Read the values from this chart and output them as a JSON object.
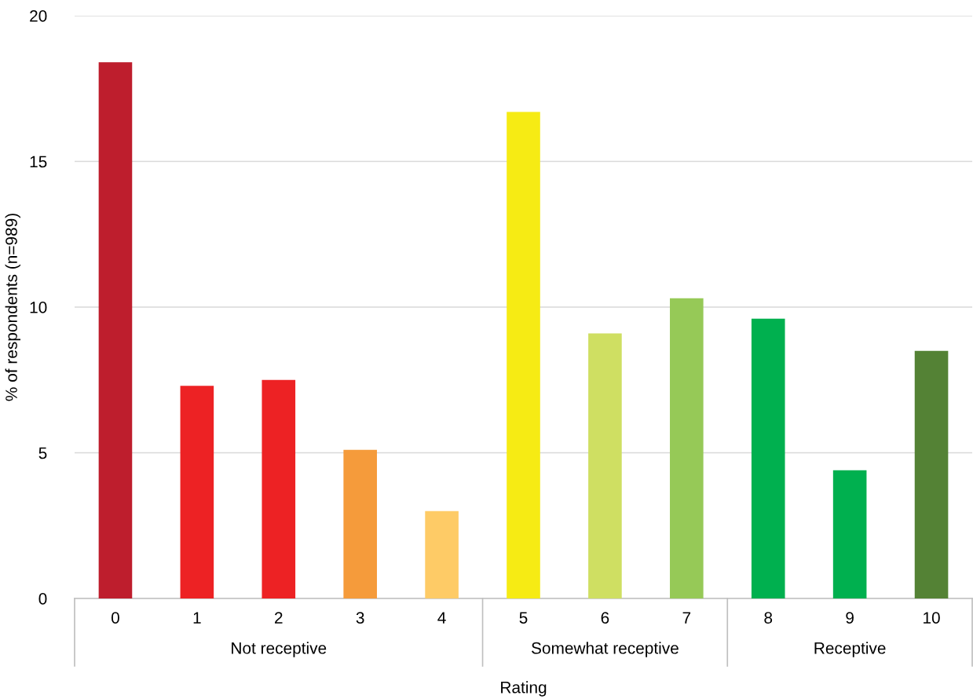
{
  "chart_data": {
    "type": "bar",
    "xlabel": "Rating",
    "ylabel": "% of respondents (n=989)",
    "categories": [
      "0",
      "1",
      "2",
      "3",
      "4",
      "5",
      "6",
      "7",
      "8",
      "9",
      "10"
    ],
    "values": [
      18.4,
      7.3,
      7.5,
      5.1,
      3.0,
      16.7,
      9.1,
      10.3,
      9.6,
      4.4,
      8.5
    ],
    "colors": [
      "#be1e2d",
      "#ed2224",
      "#ed2224",
      "#f59b3b",
      "#fecb66",
      "#f6eb14",
      "#cfdf62",
      "#96c957",
      "#00b04f",
      "#00b04f",
      "#548235"
    ],
    "ylim": [
      0,
      20
    ],
    "yticks": [
      0,
      5,
      10,
      15,
      20
    ],
    "grid": "y",
    "legend": false,
    "annotations": [
      "Not receptive",
      "Somewhat receptive",
      "Receptive"
    ]
  }
}
